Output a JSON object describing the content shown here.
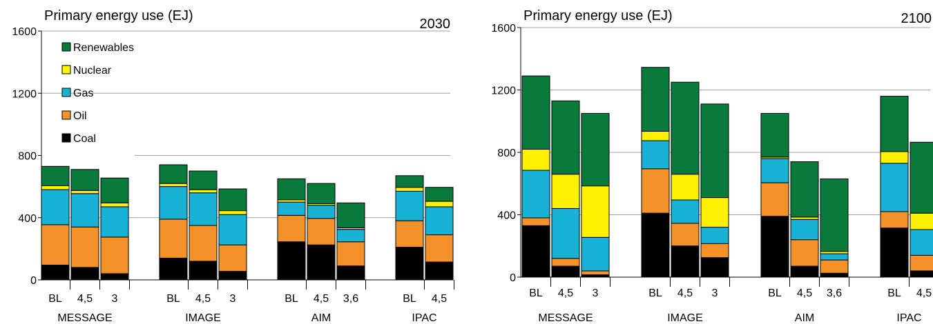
{
  "colors": {
    "Coal": "#000000",
    "Oil": "#f39229",
    "Gas": "#17b2d6",
    "Nuclear": "#fff200",
    "Renewables": "#0a7a3c",
    "grid": "#a0a0a0"
  },
  "chart_data": [
    {
      "type": "bar",
      "stacked": true,
      "title": "Primary energy use (EJ)",
      "year_label": "2030",
      "ylim": [
        0,
        1600
      ],
      "yticks": [
        "0",
        "400",
        "800",
        "1200",
        "1600"
      ],
      "grid": true,
      "legend": {
        "placement": "top-left",
        "entries": [
          "Renewables",
          "Nuclear",
          "Gas",
          "Oil",
          "Coal"
        ]
      },
      "groups": [
        {
          "name": "MESSAGE",
          "bars": [
            {
              "label": "BL",
              "Coal": 95,
              "Oil": 260,
              "Gas": 225,
              "Nuclear": 25,
              "Renewables": 125
            },
            {
              "label": "4,5",
              "Coal": 80,
              "Oil": 260,
              "Gas": 215,
              "Nuclear": 20,
              "Renewables": 135
            },
            {
              "label": "3",
              "Coal": 40,
              "Oil": 235,
              "Gas": 195,
              "Nuclear": 25,
              "Renewables": 160
            }
          ]
        },
        {
          "name": "IMAGE",
          "bars": [
            {
              "label": "BL",
              "Coal": 140,
              "Oil": 250,
              "Gas": 210,
              "Nuclear": 20,
              "Renewables": 120
            },
            {
              "label": "4,5",
              "Coal": 120,
              "Oil": 230,
              "Gas": 210,
              "Nuclear": 20,
              "Renewables": 120
            },
            {
              "label": "3",
              "Coal": 55,
              "Oil": 170,
              "Gas": 195,
              "Nuclear": 25,
              "Renewables": 140
            }
          ]
        },
        {
          "name": "AIM",
          "bars": [
            {
              "label": "BL",
              "Coal": 245,
              "Oil": 170,
              "Gas": 85,
              "Nuclear": 15,
              "Renewables": 135
            },
            {
              "label": "4,5",
              "Coal": 225,
              "Oil": 170,
              "Gas": 85,
              "Nuclear": 10,
              "Renewables": 130
            },
            {
              "label": "3,6",
              "Coal": 90,
              "Oil": 155,
              "Gas": 80,
              "Nuclear": 10,
              "Renewables": 160
            }
          ]
        },
        {
          "name": "IPAC",
          "bars": [
            {
              "label": "BL",
              "Coal": 210,
              "Oil": 170,
              "Gas": 190,
              "Nuclear": 25,
              "Renewables": 75
            },
            {
              "label": "4,5",
              "Coal": 115,
              "Oil": 175,
              "Gas": 180,
              "Nuclear": 35,
              "Renewables": 90
            }
          ]
        }
      ]
    },
    {
      "type": "bar",
      "stacked": true,
      "title": "Primary energy use (EJ)",
      "year_label": "2100",
      "ylim": [
        0,
        1600
      ],
      "yticks": [
        "0",
        "400",
        "800",
        "1200",
        "1600"
      ],
      "grid": true,
      "groups": [
        {
          "name": "MESSAGE",
          "bars": [
            {
              "label": "BL",
              "Coal": 330,
              "Oil": 50,
              "Gas": 305,
              "Nuclear": 135,
              "Renewables": 470
            },
            {
              "label": "4,5",
              "Coal": 70,
              "Oil": 50,
              "Gas": 320,
              "Nuclear": 220,
              "Renewables": 470
            },
            {
              "label": "3",
              "Coal": 15,
              "Oil": 25,
              "Gas": 215,
              "Nuclear": 330,
              "Renewables": 465
            }
          ]
        },
        {
          "name": "IMAGE",
          "bars": [
            {
              "label": "BL",
              "Coal": 410,
              "Oil": 285,
              "Gas": 180,
              "Nuclear": 60,
              "Renewables": 410
            },
            {
              "label": "4,5",
              "Coal": 200,
              "Oil": 145,
              "Gas": 150,
              "Nuclear": 165,
              "Renewables": 590
            },
            {
              "label": "3",
              "Coal": 125,
              "Oil": 90,
              "Gas": 105,
              "Nuclear": 190,
              "Renewables": 600
            }
          ]
        },
        {
          "name": "AIM",
          "bars": [
            {
              "label": "BL",
              "Coal": 390,
              "Oil": 215,
              "Gas": 155,
              "Nuclear": 10,
              "Renewables": 280
            },
            {
              "label": "4,5",
              "Coal": 70,
              "Oil": 170,
              "Gas": 130,
              "Nuclear": 15,
              "Renewables": 355
            },
            {
              "label": "3,6",
              "Coal": 25,
              "Oil": 85,
              "Gas": 40,
              "Nuclear": 15,
              "Renewables": 465
            }
          ]
        },
        {
          "name": "IPAC",
          "bars": [
            {
              "label": "BL",
              "Coal": 315,
              "Oil": 105,
              "Gas": 310,
              "Nuclear": 75,
              "Renewables": 355
            },
            {
              "label": "4,5",
              "Coal": 40,
              "Oil": 100,
              "Gas": 165,
              "Nuclear": 105,
              "Renewables": 455
            }
          ]
        }
      ]
    }
  ]
}
